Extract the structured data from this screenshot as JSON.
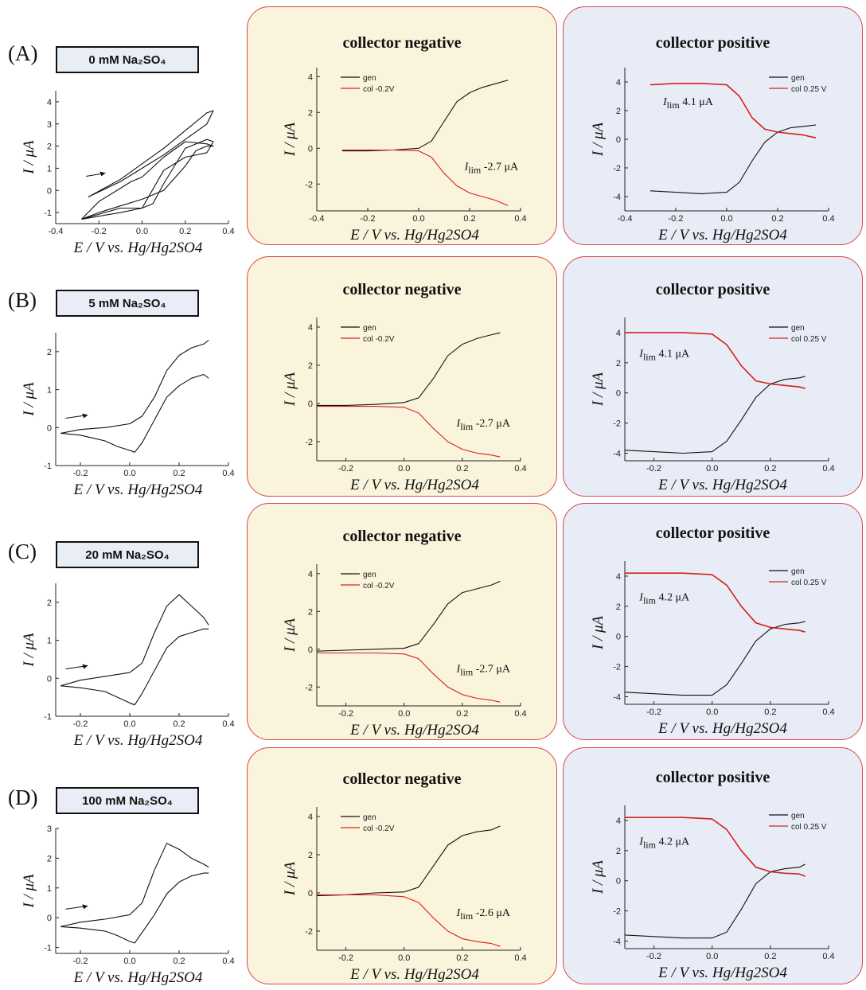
{
  "figure_rows": [
    {
      "label": "(A)",
      "concentration": "0 mM Na₂SO₄",
      "neg_title": "collector negative",
      "pos_title": "collector positive",
      "neg_ilim": "-2.7 μA",
      "pos_ilim": "4.1 μA"
    },
    {
      "label": "(B)",
      "concentration": "5 mM Na₂SO₄",
      "neg_title": "collector negative",
      "pos_title": "collector positive",
      "neg_ilim": "-2.7 μA",
      "pos_ilim": "4.1 μA"
    },
    {
      "label": "(C)",
      "concentration": "20 mM Na₂SO₄",
      "neg_title": "collector negative",
      "pos_title": "collector positive",
      "neg_ilim": "-2.7 μA",
      "pos_ilim": "4.2 μA"
    },
    {
      "label": "(D)",
      "concentration": "100 mM Na₂SO₄",
      "neg_title": "collector negative",
      "pos_title": "collector positive",
      "neg_ilim": "-2.6 μA",
      "pos_ilim": "4.2 μA"
    }
  ],
  "colors": {
    "gen": "#111111",
    "col": "#d62020",
    "neg_panel": "#fbf4dc",
    "pos_panel": "#e8ecf6",
    "border": "#d8454a"
  },
  "chart_data": [
    {
      "type": "line",
      "row": "A",
      "panel": "cv",
      "xlabel": "E / V vs. Hg/Hg2SO4",
      "ylabel": "I / μA",
      "xlim": [
        -0.4,
        0.4
      ],
      "ylim": [
        -1.5,
        4.5
      ],
      "xticks": [
        "-0.4",
        "-0.2",
        "0.0",
        "0.2",
        "0.4"
      ],
      "yticks": [
        "-1",
        "0",
        "1",
        "2",
        "3",
        "4"
      ],
      "series": [
        {
          "name": "",
          "x": [
            -0.28,
            -0.2,
            -0.1,
            0.0,
            0.1,
            0.2,
            0.25,
            0.3,
            0.33,
            0.3,
            0.2,
            0.1,
            0.0,
            -0.05,
            -0.1,
            -0.2,
            -0.28
          ],
          "y": [
            -1.3,
            -1.0,
            -0.7,
            -0.4,
            0.0,
            1.1,
            1.8,
            2.0,
            2.0,
            2.1,
            2.2,
            1.5,
            0.6,
            0.4,
            0.1,
            -0.5,
            -1.3
          ]
        },
        {
          "name": "",
          "x": [
            -0.25,
            -0.1,
            0.0,
            0.1,
            0.2,
            0.3,
            0.33,
            0.3,
            0.2,
            0.1,
            0.0,
            -0.1,
            -0.25
          ],
          "y": [
            -0.3,
            0.5,
            1.2,
            1.9,
            2.7,
            3.5,
            3.6,
            3.0,
            2.3,
            1.6,
            1.0,
            0.4,
            -0.3
          ]
        },
        {
          "name": "",
          "x": [
            -0.28,
            -0.1,
            0.0,
            0.05,
            0.1,
            0.2,
            0.3,
            0.33,
            0.3,
            0.2,
            0.1,
            0.0,
            -0.1,
            -0.28
          ],
          "y": [
            -1.3,
            -0.8,
            -0.8,
            -0.6,
            0.3,
            1.9,
            2.3,
            2.2,
            1.7,
            1.5,
            0.9,
            -0.8,
            -1.0,
            -1.3
          ]
        }
      ]
    },
    {
      "type": "line",
      "row": "A",
      "panel": "collector negative",
      "xlabel": "E / V vs. Hg/Hg2SO4",
      "ylabel": "I / μA",
      "xlim": [
        -0.4,
        0.4
      ],
      "ylim": [
        -3.5,
        4.5
      ],
      "xticks": [
        "-0.4",
        "-0.2",
        "0.0",
        "0.2",
        "0.4"
      ],
      "yticks": [
        "-2",
        "0",
        "2",
        "4"
      ],
      "legend": [
        "gen",
        "col -0.2V"
      ],
      "series": [
        {
          "name": "gen",
          "x": [
            -0.3,
            -0.2,
            -0.1,
            0.0,
            0.05,
            0.1,
            0.15,
            0.2,
            0.25,
            0.3,
            0.35
          ],
          "y": [
            -0.15,
            -0.15,
            -0.1,
            0.0,
            0.4,
            1.5,
            2.6,
            3.1,
            3.4,
            3.6,
            3.8
          ]
        },
        {
          "name": "col -0.2V",
          "x": [
            -0.3,
            -0.2,
            -0.1,
            0.0,
            0.05,
            0.1,
            0.15,
            0.2,
            0.25,
            0.3,
            0.35
          ],
          "y": [
            -0.1,
            -0.1,
            -0.1,
            -0.15,
            -0.5,
            -1.4,
            -2.1,
            -2.5,
            -2.7,
            -2.9,
            -3.2
          ]
        }
      ]
    },
    {
      "type": "line",
      "row": "A",
      "panel": "collector positive",
      "xlabel": "E / V vs. Hg/Hg2SO4",
      "ylabel": "I / μA",
      "xlim": [
        -0.4,
        0.4
      ],
      "ylim": [
        -5,
        5
      ],
      "xticks": [
        "-0.4",
        "-0.2",
        "0.0",
        "0.2",
        "0.4"
      ],
      "yticks": [
        "-4",
        "-2",
        "0",
        "2",
        "4"
      ],
      "legend": [
        "gen",
        "col  0.25 V"
      ],
      "series": [
        {
          "name": "gen",
          "x": [
            -0.3,
            -0.2,
            -0.1,
            0.0,
            0.05,
            0.1,
            0.15,
            0.2,
            0.25,
            0.3,
            0.35
          ],
          "y": [
            -3.6,
            -3.7,
            -3.8,
            -3.7,
            -3.0,
            -1.5,
            -0.2,
            0.5,
            0.8,
            0.9,
            1.0
          ]
        },
        {
          "name": "col  0.25 V",
          "x": [
            -0.3,
            -0.2,
            -0.1,
            0.0,
            0.05,
            0.1,
            0.15,
            0.2,
            0.25,
            0.3,
            0.35
          ],
          "y": [
            3.8,
            3.9,
            3.9,
            3.8,
            3.0,
            1.5,
            0.7,
            0.5,
            0.4,
            0.3,
            0.1
          ]
        }
      ]
    },
    {
      "type": "line",
      "row": "B",
      "panel": "cv",
      "xlabel": "E / V vs. Hg/Hg2SO4",
      "ylabel": "I / μA",
      "xlim": [
        -0.3,
        0.4
      ],
      "ylim": [
        -1,
        2.5
      ],
      "xticks": [
        "-0.2",
        "0.0",
        "0.2",
        "0.4"
      ],
      "yticks": [
        "-1",
        "0",
        "1",
        "2"
      ],
      "series": [
        {
          "name": "",
          "x": [
            -0.28,
            -0.2,
            -0.1,
            -0.05,
            0.0,
            0.02,
            0.05,
            0.1,
            0.15,
            0.2,
            0.25,
            0.3,
            0.32
          ],
          "y": [
            -0.15,
            -0.2,
            -0.35,
            -0.5,
            -0.6,
            -0.65,
            -0.4,
            0.2,
            0.8,
            1.1,
            1.3,
            1.4,
            1.3
          ]
        },
        {
          "name": "",
          "x": [
            -0.28,
            -0.2,
            -0.1,
            0.0,
            0.05,
            0.1,
            0.15,
            0.2,
            0.25,
            0.3,
            0.32
          ],
          "y": [
            -0.15,
            -0.05,
            0.0,
            0.1,
            0.3,
            0.8,
            1.5,
            1.9,
            2.1,
            2.2,
            2.3
          ]
        }
      ]
    },
    {
      "type": "line",
      "row": "B",
      "panel": "collector negative",
      "xlabel": "E / V vs. Hg/Hg2SO4",
      "ylabel": "I / μA",
      "xlim": [
        -0.3,
        0.4
      ],
      "ylim": [
        -3,
        4.5
      ],
      "xticks": [
        "-0.2",
        "0.0",
        "0.2",
        "0.4"
      ],
      "yticks": [
        "-2",
        "0",
        "2",
        "4"
      ],
      "legend": [
        "gen",
        "col -0.2V"
      ],
      "series": [
        {
          "name": "gen",
          "x": [
            -0.3,
            -0.2,
            -0.1,
            0.0,
            0.05,
            0.1,
            0.15,
            0.2,
            0.25,
            0.3,
            0.33
          ],
          "y": [
            -0.1,
            -0.1,
            -0.05,
            0.05,
            0.3,
            1.3,
            2.5,
            3.1,
            3.4,
            3.6,
            3.7
          ]
        },
        {
          "name": "col -0.2V",
          "x": [
            -0.3,
            -0.2,
            -0.1,
            0.0,
            0.05,
            0.1,
            0.15,
            0.2,
            0.25,
            0.3,
            0.33
          ],
          "y": [
            -0.15,
            -0.15,
            -0.15,
            -0.2,
            -0.5,
            -1.3,
            -2.0,
            -2.4,
            -2.6,
            -2.7,
            -2.8
          ]
        }
      ]
    },
    {
      "type": "line",
      "row": "B",
      "panel": "collector positive",
      "xlabel": "E / V vs. Hg/Hg2SO4",
      "ylabel": "I / μA",
      "xlim": [
        -0.3,
        0.4
      ],
      "ylim": [
        -4.5,
        5
      ],
      "xticks": [
        "-0.2",
        "0.0",
        "0.2",
        "0.4"
      ],
      "yticks": [
        "-4",
        "-2",
        "0",
        "2",
        "4"
      ],
      "legend": [
        "gen",
        "col  0.25 V"
      ],
      "series": [
        {
          "name": "gen",
          "x": [
            -0.3,
            -0.2,
            -0.1,
            0.0,
            0.05,
            0.1,
            0.15,
            0.2,
            0.25,
            0.3,
            0.32
          ],
          "y": [
            -3.8,
            -3.9,
            -4.0,
            -3.9,
            -3.2,
            -1.8,
            -0.3,
            0.6,
            0.9,
            1.0,
            1.1
          ]
        },
        {
          "name": "col  0.25 V",
          "x": [
            -0.3,
            -0.2,
            -0.1,
            0.0,
            0.05,
            0.1,
            0.15,
            0.2,
            0.25,
            0.3,
            0.32
          ],
          "y": [
            4.0,
            4.0,
            4.0,
            3.9,
            3.2,
            1.8,
            0.8,
            0.6,
            0.5,
            0.4,
            0.3
          ]
        }
      ]
    },
    {
      "type": "line",
      "row": "C",
      "panel": "cv",
      "xlabel": "E / V vs. Hg/Hg2SO4",
      "ylabel": "I / μA",
      "xlim": [
        -0.3,
        0.4
      ],
      "ylim": [
        -1,
        2.5
      ],
      "xticks": [
        "-0.2",
        "0.0",
        "0.2",
        "0.4"
      ],
      "yticks": [
        "-1",
        "0",
        "1",
        "2"
      ],
      "series": [
        {
          "name": "",
          "x": [
            -0.28,
            -0.2,
            -0.1,
            -0.05,
            0.0,
            0.02,
            0.05,
            0.1,
            0.15,
            0.2,
            0.25,
            0.3,
            0.32
          ],
          "y": [
            -0.2,
            -0.25,
            -0.35,
            -0.5,
            -0.65,
            -0.7,
            -0.4,
            0.2,
            0.8,
            1.1,
            1.2,
            1.3,
            1.3
          ]
        },
        {
          "name": "",
          "x": [
            -0.28,
            -0.2,
            -0.1,
            0.0,
            0.05,
            0.1,
            0.15,
            0.2,
            0.25,
            0.3,
            0.32
          ],
          "y": [
            -0.2,
            -0.05,
            0.05,
            0.15,
            0.4,
            1.2,
            1.9,
            2.2,
            1.9,
            1.6,
            1.4
          ]
        }
      ]
    },
    {
      "type": "line",
      "row": "C",
      "panel": "collector negative",
      "xlabel": "E / V vs. Hg/Hg2SO4",
      "ylabel": "I / μA",
      "xlim": [
        -0.3,
        0.4
      ],
      "ylim": [
        -3,
        4.5
      ],
      "xticks": [
        "-0.2",
        "0.0",
        "0.2",
        "0.4"
      ],
      "yticks": [
        "-2",
        "0",
        "2",
        "4"
      ],
      "legend": [
        "gen",
        "col -0.2V"
      ],
      "series": [
        {
          "name": "gen",
          "x": [
            -0.3,
            -0.2,
            -0.1,
            0.0,
            0.05,
            0.1,
            0.15,
            0.2,
            0.25,
            0.3,
            0.33
          ],
          "y": [
            -0.1,
            -0.05,
            0.0,
            0.05,
            0.3,
            1.3,
            2.4,
            3.0,
            3.2,
            3.4,
            3.6
          ]
        },
        {
          "name": "col -0.2V",
          "x": [
            -0.3,
            -0.2,
            -0.1,
            0.0,
            0.05,
            0.1,
            0.15,
            0.2,
            0.25,
            0.3,
            0.33
          ],
          "y": [
            -0.2,
            -0.2,
            -0.2,
            -0.25,
            -0.5,
            -1.3,
            -2.0,
            -2.4,
            -2.6,
            -2.7,
            -2.8
          ]
        }
      ]
    },
    {
      "type": "line",
      "row": "C",
      "panel": "collector positive",
      "xlabel": "E / V vs. Hg/Hg2SO4",
      "ylabel": "I / μA",
      "xlim": [
        -0.3,
        0.4
      ],
      "ylim": [
        -4.5,
        5
      ],
      "xticks": [
        "-0.2",
        "0.0",
        "0.2",
        "0.4"
      ],
      "yticks": [
        "-4",
        "-2",
        "0",
        "2",
        "4"
      ],
      "legend": [
        "gen",
        "col  0.25 V"
      ],
      "series": [
        {
          "name": "gen",
          "x": [
            -0.3,
            -0.2,
            -0.1,
            0.0,
            0.05,
            0.1,
            0.15,
            0.2,
            0.25,
            0.3,
            0.32
          ],
          "y": [
            -3.7,
            -3.8,
            -3.9,
            -3.9,
            -3.2,
            -1.8,
            -0.3,
            0.5,
            0.8,
            0.9,
            1.0
          ]
        },
        {
          "name": "col  0.25 V",
          "x": [
            -0.3,
            -0.2,
            -0.1,
            0.0,
            0.05,
            0.1,
            0.15,
            0.2,
            0.25,
            0.3,
            0.32
          ],
          "y": [
            4.2,
            4.2,
            4.2,
            4.1,
            3.4,
            2.0,
            0.9,
            0.6,
            0.5,
            0.4,
            0.3
          ]
        }
      ]
    },
    {
      "type": "line",
      "row": "D",
      "panel": "cv",
      "xlabel": "E / V vs. Hg/Hg2SO4",
      "ylabel": "I / μA",
      "xlim": [
        -0.3,
        0.4
      ],
      "ylim": [
        -1.2,
        3
      ],
      "xticks": [
        "-0.2",
        "0.0",
        "0.2",
        "0.4"
      ],
      "yticks": [
        "-1",
        "0",
        "1",
        "2",
        "3"
      ],
      "series": [
        {
          "name": "",
          "x": [
            -0.28,
            -0.2,
            -0.1,
            -0.05,
            0.0,
            0.02,
            0.05,
            0.1,
            0.15,
            0.2,
            0.25,
            0.3,
            0.32
          ],
          "y": [
            -0.3,
            -0.35,
            -0.45,
            -0.6,
            -0.8,
            -0.85,
            -0.5,
            0.1,
            0.8,
            1.2,
            1.4,
            1.5,
            1.5
          ]
        },
        {
          "name": "",
          "x": [
            -0.28,
            -0.2,
            -0.1,
            0.0,
            0.05,
            0.1,
            0.15,
            0.2,
            0.25,
            0.3,
            0.32
          ],
          "y": [
            -0.3,
            -0.15,
            -0.05,
            0.1,
            0.5,
            1.6,
            2.5,
            2.3,
            2.0,
            1.8,
            1.7
          ]
        }
      ]
    },
    {
      "type": "line",
      "row": "D",
      "panel": "collector negative",
      "xlabel": "E / V vs. Hg/Hg2SO4",
      "ylabel": "I / μA",
      "xlim": [
        -0.3,
        0.4
      ],
      "ylim": [
        -3,
        4.5
      ],
      "xticks": [
        "-0.2",
        "0.0",
        "0.2",
        "0.4"
      ],
      "yticks": [
        "-2",
        "0",
        "2",
        "4"
      ],
      "legend": [
        "gen",
        "col -0.2V"
      ],
      "series": [
        {
          "name": "gen",
          "x": [
            -0.3,
            -0.2,
            -0.1,
            0.0,
            0.05,
            0.1,
            0.15,
            0.2,
            0.25,
            0.3,
            0.33
          ],
          "y": [
            -0.15,
            -0.1,
            0.0,
            0.05,
            0.3,
            1.4,
            2.5,
            3.0,
            3.2,
            3.3,
            3.5
          ]
        },
        {
          "name": "col -0.2V",
          "x": [
            -0.3,
            -0.2,
            -0.1,
            0.0,
            0.05,
            0.1,
            0.15,
            0.2,
            0.25,
            0.3,
            0.33
          ],
          "y": [
            -0.1,
            -0.1,
            -0.1,
            -0.2,
            -0.5,
            -1.3,
            -2.0,
            -2.4,
            -2.55,
            -2.65,
            -2.8
          ]
        }
      ]
    },
    {
      "type": "line",
      "row": "D",
      "panel": "collector positive",
      "xlabel": "E / V vs. Hg/Hg2SO4",
      "ylabel": "I / μA",
      "xlim": [
        -0.3,
        0.4
      ],
      "ylim": [
        -4.5,
        5
      ],
      "xticks": [
        "-0.2",
        "0.0",
        "0.2",
        "0.4"
      ],
      "yticks": [
        "-4",
        "-2",
        "0",
        "2",
        "4"
      ],
      "legend": [
        "gen",
        "col  0.25 V"
      ],
      "series": [
        {
          "name": "gen",
          "x": [
            -0.3,
            -0.2,
            -0.1,
            0.0,
            0.05,
            0.1,
            0.15,
            0.2,
            0.25,
            0.3,
            0.32
          ],
          "y": [
            -3.6,
            -3.7,
            -3.8,
            -3.8,
            -3.4,
            -1.9,
            -0.2,
            0.6,
            0.8,
            0.9,
            1.1
          ]
        },
        {
          "name": "col  0.25 V",
          "x": [
            -0.3,
            -0.2,
            -0.1,
            0.0,
            0.05,
            0.1,
            0.15,
            0.2,
            0.25,
            0.3,
            0.32
          ],
          "y": [
            4.2,
            4.2,
            4.2,
            4.1,
            3.4,
            2.0,
            0.9,
            0.6,
            0.5,
            0.45,
            0.3
          ]
        }
      ]
    }
  ]
}
